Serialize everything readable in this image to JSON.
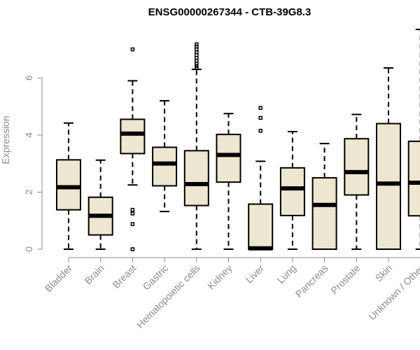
{
  "chart_data": {
    "type": "boxplot",
    "title": "ENSG00000267344 - CTB-39G8.3",
    "xlabel": "",
    "ylabel": "Expression",
    "ylim": [
      0,
      7.7
    ],
    "yticks": [
      0,
      2,
      4,
      6
    ],
    "grid": false,
    "box_color": "#ede7cf",
    "categories": [
      "Bladder",
      "Brain",
      "Breast",
      "Gastric",
      "Hematopoietic cells",
      "Kidney",
      "Liver",
      "Lung",
      "Pancreas",
      "Prostate",
      "Skin",
      "Unknown / Other"
    ],
    "boxes": [
      {
        "name": "Bladder",
        "min": 0.0,
        "q1": 1.38,
        "median": 2.17,
        "q3": 3.13,
        "max": 4.42,
        "outliers": []
      },
      {
        "name": "Brain",
        "min": 0.0,
        "q1": 0.5,
        "median": 1.17,
        "q3": 1.82,
        "max": 3.12,
        "outliers": []
      },
      {
        "name": "Breast",
        "min": 2.25,
        "q1": 3.35,
        "median": 4.05,
        "q3": 4.55,
        "max": 5.9,
        "outliers": [
          7.0,
          1.38,
          1.25,
          0.88,
          0.0
        ]
      },
      {
        "name": "Gastric",
        "min": 1.32,
        "q1": 2.22,
        "median": 3.0,
        "q3": 3.57,
        "max": 5.2,
        "outliers": []
      },
      {
        "name": "Hematopoietic cells",
        "min": 0.0,
        "q1": 1.53,
        "median": 2.28,
        "q3": 3.45,
        "max": 6.3,
        "outliers": [
          6.35,
          6.42,
          6.5,
          6.6,
          6.7,
          6.8,
          6.9,
          7.0,
          7.1,
          7.18
        ]
      },
      {
        "name": "Kidney",
        "min": 0.0,
        "q1": 2.35,
        "median": 3.3,
        "q3": 4.02,
        "max": 4.75,
        "outliers": []
      },
      {
        "name": "Liver",
        "min": 0.0,
        "q1": 0.0,
        "median": 0.03,
        "q3": 1.58,
        "max": 3.08,
        "outliers": [
          4.95,
          4.6,
          4.15
        ]
      },
      {
        "name": "Lung",
        "min": 0.0,
        "q1": 1.18,
        "median": 2.13,
        "q3": 2.85,
        "max": 4.12,
        "outliers": []
      },
      {
        "name": "Pancreas",
        "min": 0.0,
        "q1": 0.0,
        "median": 1.55,
        "q3": 2.5,
        "max": 3.7,
        "outliers": []
      },
      {
        "name": "Prostate",
        "min": 0.0,
        "q1": 1.9,
        "median": 2.7,
        "q3": 3.87,
        "max": 4.72,
        "outliers": []
      },
      {
        "name": "Skin",
        "min": 0.0,
        "q1": 0.0,
        "median": 2.3,
        "q3": 4.4,
        "max": 6.35,
        "outliers": []
      },
      {
        "name": "Unknown / Other",
        "min": 0.0,
        "q1": 1.17,
        "median": 2.33,
        "q3": 3.78,
        "max": 7.7,
        "outliers": []
      }
    ]
  }
}
